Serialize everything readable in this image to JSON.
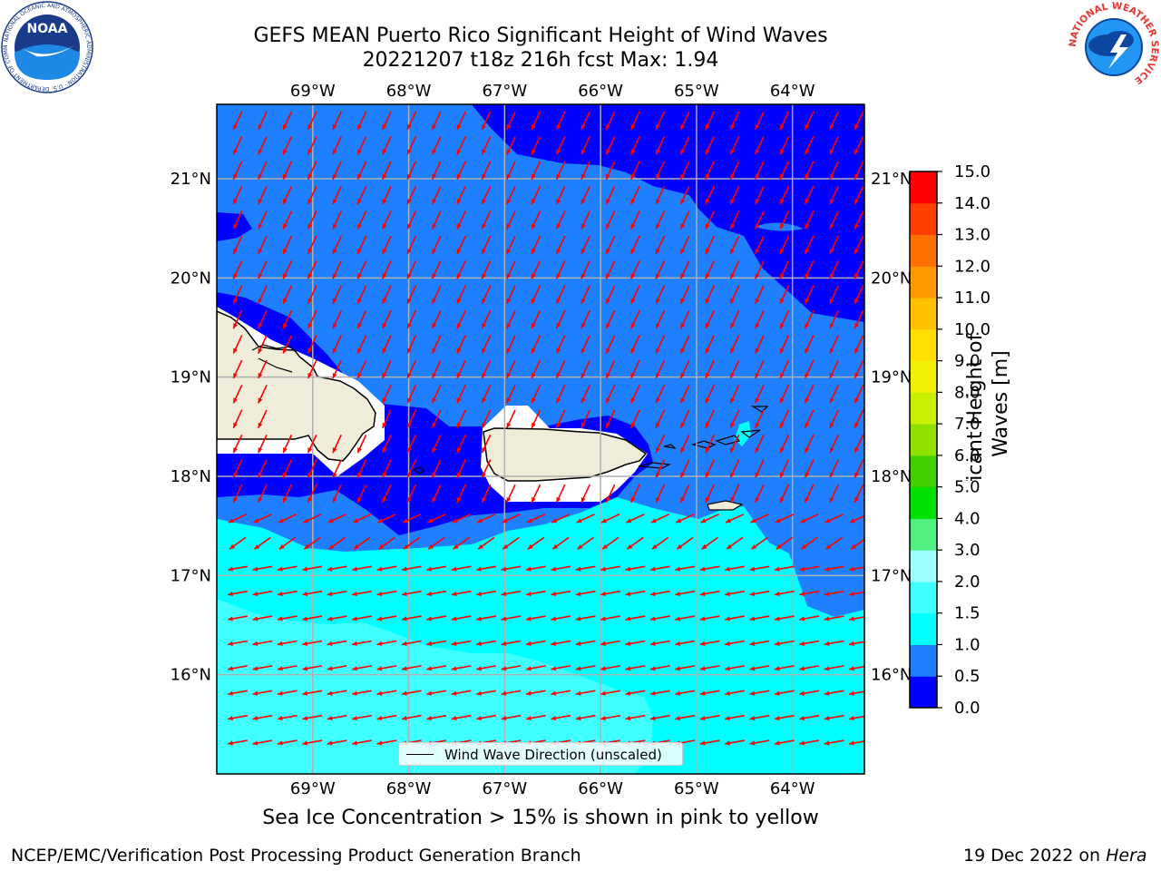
{
  "header": {
    "title_line1": "GEFS MEAN Puerto Rico Significant Height of Wind Waves",
    "title_line2": "20221207 t18z 216h fcst   Max: 1.94"
  },
  "logos": {
    "left": "noaa-logo",
    "left_ring_text": "NATIONAL OCEANIC AND ATMOSPHERIC ADMINISTRATION · U.S. DEPARTMENT OF COMMERCE",
    "left_center_text": "NOAA",
    "right": "national-weather-service-logo",
    "right_ring_text": "NATIONAL WEATHER SERVICE"
  },
  "map": {
    "lon_labels": [
      "69°W",
      "68°W",
      "67°W",
      "66°W",
      "65°W",
      "64°W"
    ],
    "lat_labels": [
      "21°N",
      "20°N",
      "19°N",
      "18°N",
      "17°N",
      "16°N"
    ],
    "lon_range": [
      -70.0,
      -63.25
    ],
    "lat_range": [
      15.0,
      21.75
    ],
    "gridlines": true,
    "legend_text": "Wind Wave Direction (unscaled)",
    "wind_wave_direction": "north-east to south-west (north of ~17°N), east to west (south of ~17°N)"
  },
  "colorbar": {
    "label": "Significant Height of Wind Waves [m]",
    "ticks": [
      "0.0",
      "0.5",
      "1.0",
      "1.5",
      "2.0",
      "3.0",
      "4.0",
      "5.0",
      "6.0",
      "7.0",
      "8.0",
      "9.0",
      "10.0",
      "11.0",
      "12.0",
      "13.0",
      "14.0",
      "15.0"
    ],
    "colors": [
      "#0000ff",
      "#1e7fff",
      "#00ffff",
      "#40ffff",
      "#a0ffff",
      "#50f080",
      "#00e000",
      "#40d000",
      "#90e000",
      "#c8f000",
      "#f0f000",
      "#ffe000",
      "#ffc000",
      "#ff9800",
      "#ff7000",
      "#ff4000",
      "#ff0000"
    ]
  },
  "colors": {
    "band_0_05": "#0000ff",
    "band_05_10": "#1e7fff",
    "band_10_15": "#00ffff",
    "band_15_20": "#40ffff",
    "land": "#efecd9",
    "arrow": "#ff0000"
  },
  "notes": {
    "sea_ice": "Sea Ice Concentration > 15% is shown in pink to yellow"
  },
  "footer": {
    "left": "NCEP/EMC/Verification Post Processing Product Generation Branch",
    "right_prefix": "19 Dec 2022 on ",
    "right_host": "Hera"
  }
}
